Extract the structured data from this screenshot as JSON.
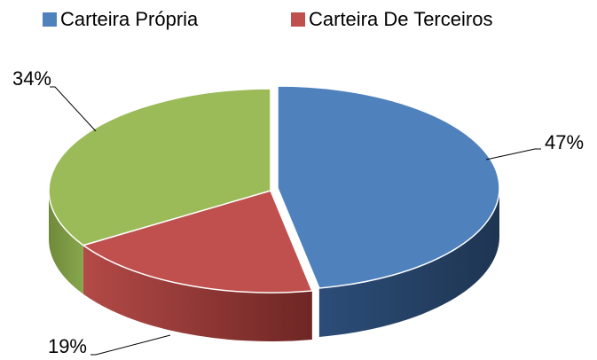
{
  "chart_data": {
    "type": "pie",
    "categories": [
      "Carteira Própria",
      "Carteira De Terceiros",
      null
    ],
    "values": [
      47,
      19,
      34
    ],
    "value_labels": [
      "47%",
      "19%",
      "34%"
    ],
    "colors": [
      "#4f81bd",
      "#c0504d",
      "#9bbb59"
    ],
    "legend": "top"
  }
}
